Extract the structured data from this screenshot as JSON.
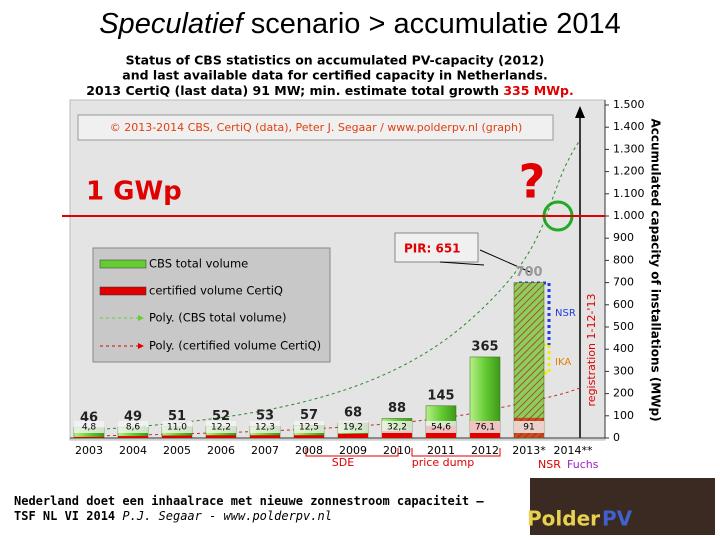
{
  "slide": {
    "title_italic": "Speculatief",
    "title_rest": " scenario > accumulatie 2014",
    "footer_line1": "Nederland doet een inhaalrace met nieuwe zonnestroom capaciteit –",
    "footer_line2": "TSF NL VI 2014",
    "footer_author": "P.J. Segaar",
    "footer_site": "- www.polderpv.nl",
    "logo_left": "Polder",
    "logo_right": "PV"
  },
  "chart_data": {
    "type": "bar",
    "title_lines": [
      "Status of CBS statistics on accumulated PV-capacity (2012)",
      "and last available data for certified capacity in Netherlands."
    ],
    "title_line3": "2013 CertiQ (last data) 91 MW; min. estimate total growth ",
    "title_line3_highlight": "335 MWp.",
    "source": "© 2013-2014 CBS, CertiQ (data), Peter J. Segaar / www.polderpv.nl (graph)",
    "y_label": "Accumulated capacity of installations (MWp)",
    "categories": [
      "2003",
      "2004",
      "2005",
      "2006",
      "2007",
      "2008",
      "2009",
      "2010",
      "2011",
      "2012",
      "2013*",
      "2014**"
    ],
    "series": [
      {
        "name": "CBS total volume",
        "color": "#66cc33",
        "values": [
          46,
          49,
          51,
          52,
          53,
          57,
          68,
          88,
          145,
          365,
          700,
          null
        ]
      },
      {
        "name": "certified volume CertiQ",
        "color": "#e00000",
        "values": [
          4.8,
          8.6,
          11.0,
          12.2,
          12.3,
          12.5,
          19.2,
          32.2,
          54.6,
          76.1,
          91,
          null
        ],
        "value_labels": [
          "4,8",
          "8,6",
          "11,0",
          "12,2",
          "12,3",
          "12,5",
          "19,2",
          "32,2",
          "54,6",
          "76,1",
          "91",
          null
        ]
      }
    ],
    "trendline_names": [
      "Poly. (CBS total volume)",
      "Poly. (certified volume CertiQ)"
    ],
    "ylim": [
      0,
      1500
    ],
    "yticks": [
      0,
      100,
      200,
      300,
      400,
      500,
      600,
      700,
      800,
      900,
      {
        "value": 1000,
        "label": "1.000"
      },
      {
        "value": 1100,
        "label": "1.100"
      },
      {
        "value": 1200,
        "label": "1.200"
      },
      {
        "value": 1300,
        "label": "1.300"
      },
      {
        "value": 1400,
        "label": "1.400"
      },
      {
        "value": 1500,
        "label": "1.500"
      }
    ],
    "grid": false,
    "reference_line": {
      "value": 1000,
      "label": "1 GWp",
      "color": "#e00000"
    },
    "annotations": {
      "question": "?",
      "pir": "PIR: 651",
      "registration": "registration 1-12-'13",
      "nsr": "NSR",
      "ika": "IKA",
      "sde": "SDE",
      "price_dump": "price dump",
      "nsr_fuchs_1": "NSR",
      "nsr_fuchs_2": "Fuchs"
    }
  }
}
